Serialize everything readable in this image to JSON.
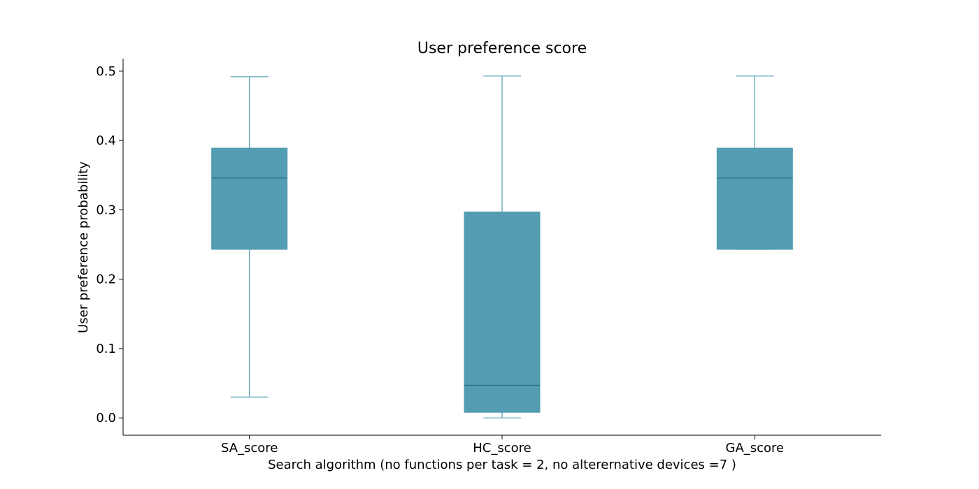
{
  "chart_data": {
    "type": "box",
    "title": "User preference score",
    "xlabel": "Search algorithm (no functions per task = 2, no alterernative devices =7 )",
    "ylabel": "User preference probability",
    "ylim": [
      -0.025,
      0.518
    ],
    "yticks": [
      0.0,
      0.1,
      0.2,
      0.3,
      0.4,
      0.5
    ],
    "ytick_labels": [
      "0.0",
      "0.1",
      "0.2",
      "0.3",
      "0.4",
      "0.5"
    ],
    "categories": [
      "SA_score",
      "HC_score",
      "GA_score"
    ],
    "boxes": [
      {
        "whisker_low": 0.03,
        "q1": 0.243,
        "median": 0.346,
        "q3": 0.389,
        "whisker_high": 0.492
      },
      {
        "whisker_low": 0.0,
        "q1": 0.008,
        "median": 0.047,
        "q3": 0.297,
        "whisker_high": 0.493
      },
      {
        "whisker_low": 0.243,
        "q1": 0.243,
        "median": 0.346,
        "q3": 0.389,
        "whisker_high": 0.493
      }
    ],
    "grid": false,
    "colors": {
      "box_fill": "#539db3",
      "median": "#2b6b7e",
      "whisker": "#539db3",
      "axis": "#000000"
    }
  }
}
